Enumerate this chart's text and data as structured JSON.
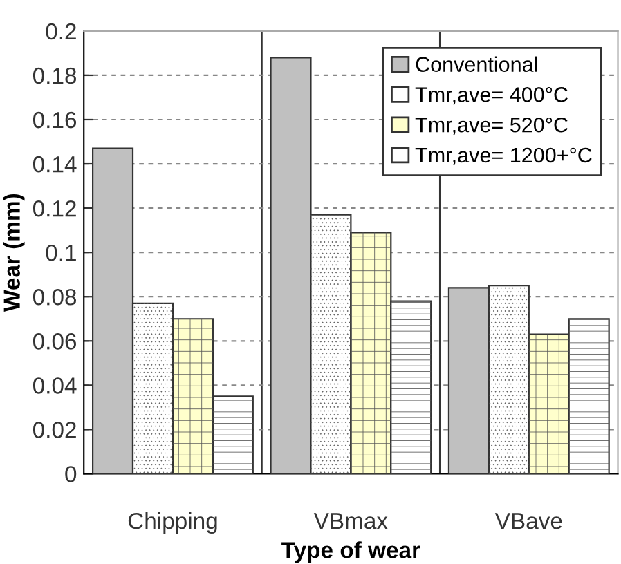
{
  "chart_data": {
    "type": "bar",
    "xlabel": "Type of wear",
    "ylabel": "Wear (mm)",
    "categories": [
      "Chipping",
      "VBmax",
      "VBave"
    ],
    "series": [
      {
        "name": "Conventional",
        "color": "#c0c0c0",
        "values": [
          0.147,
          0.188,
          0.084
        ]
      },
      {
        "name": "Tmr,ave= 400°C",
        "color": "#ffffff",
        "values": [
          0.077,
          0.117,
          0.085
        ]
      },
      {
        "name": "Tmr,ave= 520°C",
        "color": "#ffffcc",
        "values": [
          0.07,
          0.109,
          0.063
        ]
      },
      {
        "name": "Tmr,ave= 1200+°C",
        "color": "#ffffff",
        "values": [
          0.035,
          0.078,
          0.07
        ]
      }
    ],
    "ylim": [
      0,
      0.2
    ],
    "yticks": [
      0,
      0.02,
      0.04,
      0.06,
      0.08,
      0.1,
      0.12,
      0.14,
      0.16,
      0.18,
      0.2
    ],
    "grid": true,
    "legend": "top right"
  }
}
